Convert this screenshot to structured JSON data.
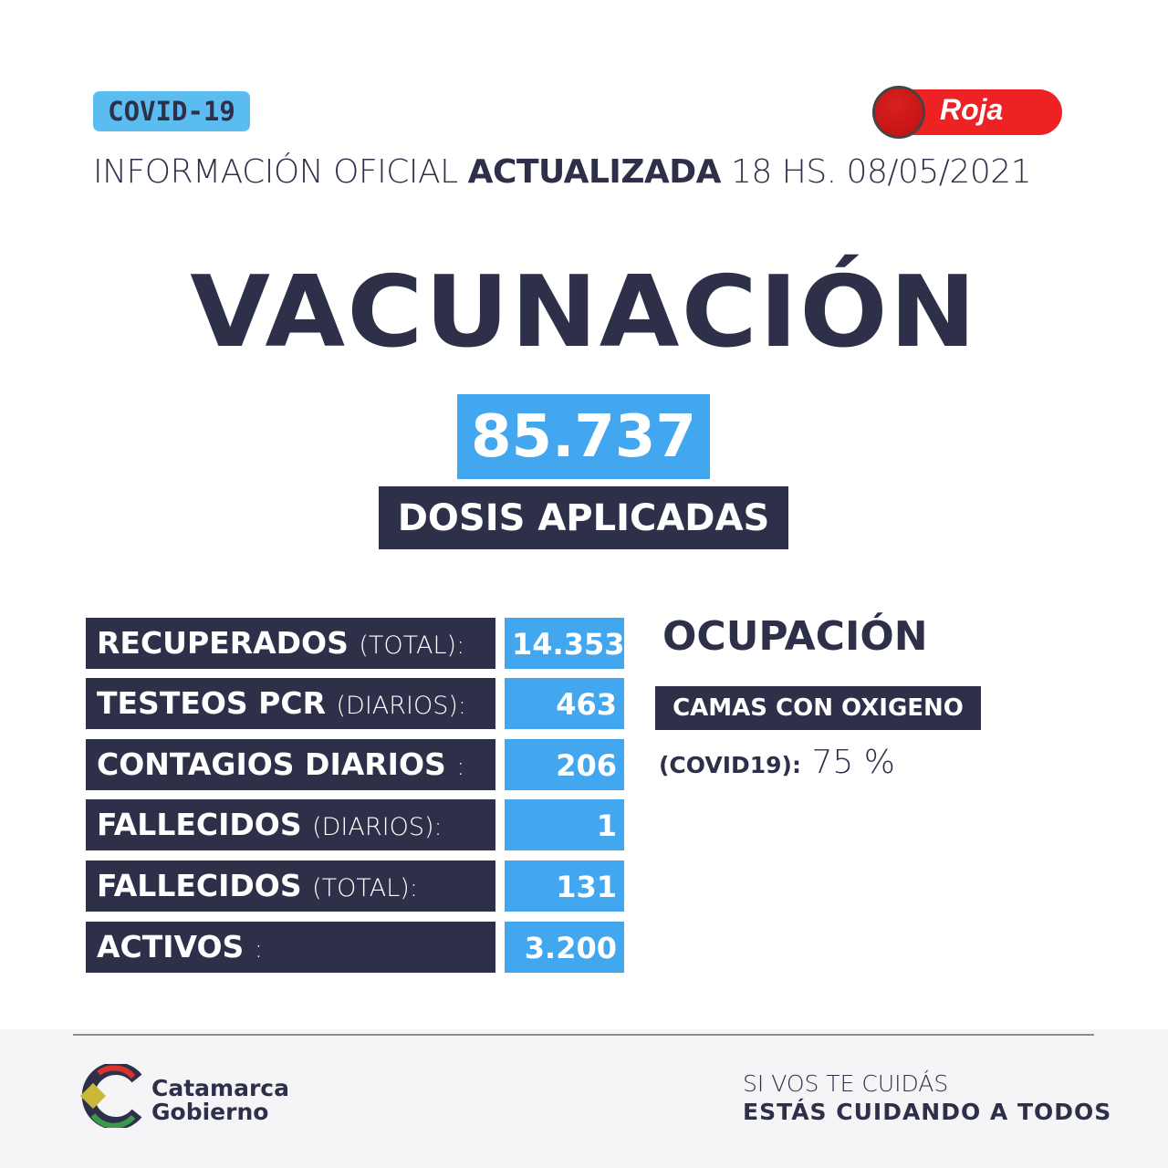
{
  "header": {
    "tag": "COVID-19",
    "alert_level": "Roja",
    "alert_color": "#ee2222",
    "info_prefix": "INFORMACIÓN OFICIAL",
    "info_bold": "ACTUALIZADA",
    "info_time": "18 HS. 08/05/2021"
  },
  "vaccination": {
    "title": "VACUNACIÓN",
    "doses": "85.737",
    "doses_label": "DOSIS APLICADAS"
  },
  "stats": [
    {
      "label": "RECUPERADOS",
      "qualifier": "(TOTAL):",
      "value": "14.353"
    },
    {
      "label": "TESTEOS PCR",
      "qualifier": "(DIARIOS):",
      "value": "463"
    },
    {
      "label": "CONTAGIOS DIARIOS",
      "qualifier": ":",
      "value": "206"
    },
    {
      "label": "FALLECIDOS",
      "qualifier": "(DIARIOS):",
      "value": "1"
    },
    {
      "label": "FALLECIDOS",
      "qualifier": "(TOTAL):",
      "value": "131"
    },
    {
      "label": "ACTIVOS",
      "qualifier": ":",
      "value": "3.200"
    }
  ],
  "occupancy": {
    "title": "OCUPACIÓN",
    "badge": "CAMAS CON OXIGENO",
    "label": "(COVID19):",
    "value": "75 %"
  },
  "footer": {
    "brand_line1": "Catamarca",
    "brand_line2": "Gobierno",
    "slogan_line1": "SI VOS TE CUIDÁS",
    "slogan_line2": "ESTÁS CUIDANDO A TODOS"
  },
  "colors": {
    "navy": "#2e3049",
    "blue": "#42a7ef",
    "tag": "#5bbcf0"
  }
}
